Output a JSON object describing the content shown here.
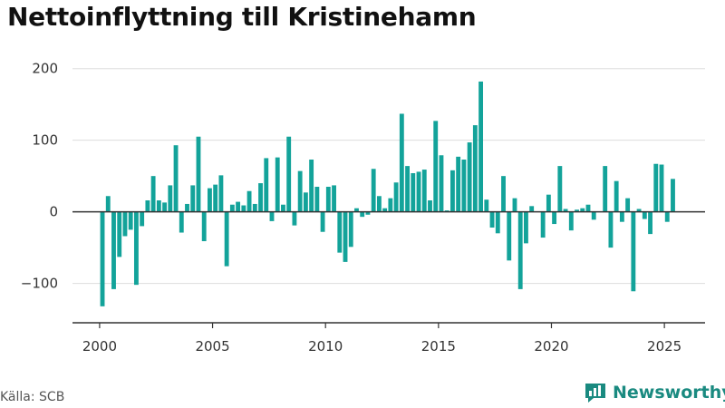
{
  "title": "Nettoinflyttning till Kristinehamn",
  "source": "Källa: SCB",
  "brand": "Newsworthy",
  "colors": {
    "bar": "#13a39a",
    "brand": "#1a8a80",
    "grid": "#dddddd",
    "zero": "#333333"
  },
  "chart_data": {
    "type": "bar",
    "title": "Nettoinflyttning till Kristinehamn",
    "xlabel": "",
    "ylabel": "",
    "ylim": [
      -155,
      225
    ],
    "xlim": [
      1998.8,
      2026.8
    ],
    "grid": true,
    "y_ticks": [
      200,
      100,
      0,
      -100
    ],
    "y_tick_labels": [
      "200",
      "100",
      "0",
      "−100"
    ],
    "x_ticks": [
      2000,
      2005,
      2010,
      2015,
      2020,
      2025
    ],
    "x_tick_labels": [
      "2000",
      "2005",
      "2010",
      "2015",
      "2020",
      "2025"
    ],
    "frequency": "quarterly",
    "start": "2000Q1",
    "values": [
      -132,
      22,
      -108,
      -63,
      -34,
      -25,
      -102,
      -20,
      16,
      50,
      16,
      13,
      37,
      93,
      -29,
      11,
      37,
      105,
      -41,
      33,
      38,
      51,
      -76,
      10,
      14,
      9,
      29,
      11,
      40,
      75,
      -13,
      76,
      10,
      105,
      -19,
      57,
      27,
      73,
      35,
      -28,
      35,
      37,
      -57,
      -70,
      -49,
      5,
      -7,
      -4,
      60,
      22,
      5,
      19,
      41,
      137,
      64,
      54,
      56,
      59,
      16,
      127,
      79,
      2,
      58,
      77,
      73,
      97,
      121,
      182,
      17,
      -22,
      -30,
      50,
      -68,
      19,
      -108,
      -44,
      8,
      0,
      -36,
      24,
      -17,
      64,
      4,
      -26,
      3,
      5,
      10,
      -11,
      0,
      64,
      -50,
      43,
      -14,
      19,
      -111,
      4,
      -10,
      -31,
      67,
      66,
      -14,
      46
    ]
  }
}
